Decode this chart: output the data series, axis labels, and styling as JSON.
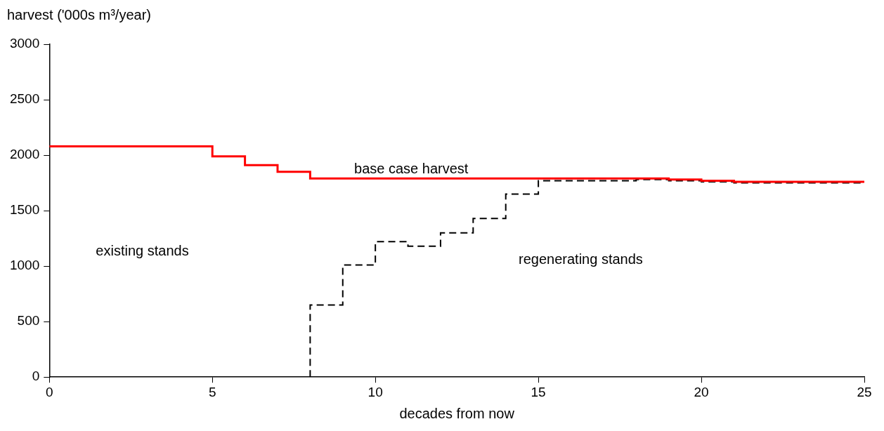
{
  "chart_data": {
    "type": "step",
    "xlabel": "decades from now",
    "ylabel": "harvest ('000s m³/year)",
    "xlim": [
      0,
      25
    ],
    "xticks": [
      0,
      5,
      10,
      15,
      20,
      25
    ],
    "ylim": [
      0,
      3000
    ],
    "yticks": [
      0,
      500,
      1000,
      1500,
      2000,
      2500,
      3000
    ],
    "grid": false,
    "legend": false,
    "marker": "none",
    "series": [
      {
        "color": "#ff0000",
        "line_style": "solid",
        "x": [
          0,
          5,
          6,
          7,
          8,
          19,
          20,
          21,
          25
        ],
        "values": [
          2080,
          1990,
          1910,
          1850,
          1790,
          1780,
          1770,
          1760,
          1760
        ]
      },
      {
        "color": "#000000",
        "line_style": "dashed",
        "x": [
          8,
          8,
          9,
          10,
          11,
          12,
          13,
          14,
          15,
          18,
          19,
          20,
          21,
          25
        ],
        "values": [
          0,
          650,
          1010,
          1220,
          1180,
          1300,
          1430,
          1650,
          1770,
          1780,
          1770,
          1760,
          1750,
          1750
        ]
      }
    ],
    "annotations": [
      {
        "text": "base case harvest",
        "x": 11.1,
        "y": 1790
      },
      "regenerating stands",
      "existing stands"
    ]
  }
}
